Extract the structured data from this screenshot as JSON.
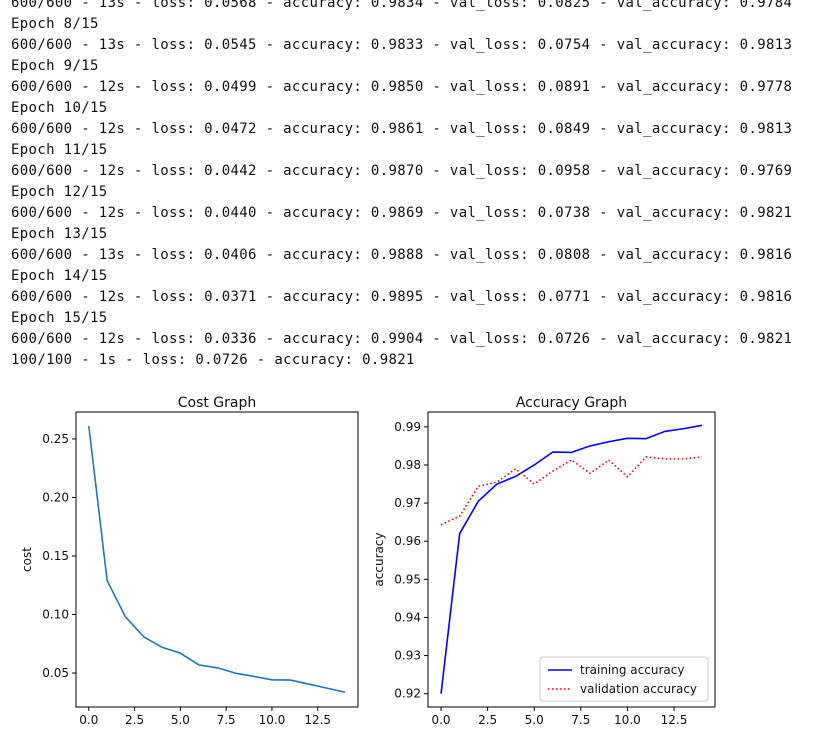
{
  "output": {
    "lines": [
      "600/600 - 13s - loss: 0.0568 - accuracy: 0.9834 - val_loss: 0.0825 - val_accuracy: 0.9784",
      "Epoch 8/15",
      "600/600 - 13s - loss: 0.0545 - accuracy: 0.9833 - val_loss: 0.0754 - val_accuracy: 0.9813",
      "Epoch 9/15",
      "600/600 - 12s - loss: 0.0499 - accuracy: 0.9850 - val_loss: 0.0891 - val_accuracy: 0.9778",
      "Epoch 10/15",
      "600/600 - 12s - loss: 0.0472 - accuracy: 0.9861 - val_loss: 0.0849 - val_accuracy: 0.9813",
      "Epoch 11/15",
      "600/600 - 12s - loss: 0.0442 - accuracy: 0.9870 - val_loss: 0.0958 - val_accuracy: 0.9769",
      "Epoch 12/15",
      "600/600 - 12s - loss: 0.0440 - accuracy: 0.9869 - val_loss: 0.0738 - val_accuracy: 0.9821",
      "Epoch 13/15",
      "600/600 - 13s - loss: 0.0406 - accuracy: 0.9888 - val_loss: 0.0808 - val_accuracy: 0.9816",
      "Epoch 14/15",
      "600/600 - 12s - loss: 0.0371 - accuracy: 0.9895 - val_loss: 0.0771 - val_accuracy: 0.9816",
      "Epoch 15/15",
      "600/600 - 12s - loss: 0.0336 - accuracy: 0.9904 - val_loss: 0.0726 - val_accuracy: 0.9821",
      "100/100 - 1s - loss: 0.0726 - accuracy: 0.9821"
    ]
  },
  "chart_data": [
    {
      "type": "line",
      "title": "Cost Graph",
      "xlabel": "",
      "ylabel": "cost",
      "xlim": [
        -0.7,
        14.7
      ],
      "ylim": [
        0.021,
        0.273
      ],
      "xticks": [
        0.0,
        2.5,
        5.0,
        7.5,
        10.0,
        12.5
      ],
      "xtick_labels": [
        "0.0",
        "2.5",
        "5.0",
        "7.5",
        "10.0",
        "12.5"
      ],
      "yticks": [
        0.05,
        0.1,
        0.15,
        0.2,
        0.25
      ],
      "ytick_labels": [
        "0.05",
        "0.10",
        "0.15",
        "0.20",
        "0.25"
      ],
      "grid": false,
      "series": [
        {
          "color": "#1f77b4",
          "style": "solid",
          "x": [
            0,
            1,
            2,
            3,
            4,
            5,
            6,
            7,
            8,
            9,
            10,
            11,
            12,
            13,
            14
          ],
          "y": [
            0.261,
            0.129,
            0.098,
            0.081,
            0.072,
            0.067,
            0.057,
            0.0545,
            0.0499,
            0.0472,
            0.0442,
            0.044,
            0.0406,
            0.0371,
            0.0336
          ]
        }
      ]
    },
    {
      "type": "line",
      "title": "Accuracy Graph",
      "xlabel": "",
      "ylabel": "accuracy",
      "xlim": [
        -0.7,
        14.7
      ],
      "ylim": [
        0.9165,
        0.9939
      ],
      "xticks": [
        0.0,
        2.5,
        5.0,
        7.5,
        10.0,
        12.5
      ],
      "xtick_labels": [
        "0.0",
        "2.5",
        "5.0",
        "7.5",
        "10.0",
        "12.5"
      ],
      "yticks": [
        0.92,
        0.93,
        0.94,
        0.95,
        0.96,
        0.97,
        0.98,
        0.99
      ],
      "ytick_labels": [
        "0.92",
        "0.93",
        "0.94",
        "0.95",
        "0.96",
        "0.97",
        "0.98",
        "0.99"
      ],
      "grid": false,
      "legend": "lower-right",
      "series": [
        {
          "name": "training accuracy",
          "color": "#0000ff",
          "style": "solid",
          "x": [
            0,
            1,
            2,
            3,
            4,
            5,
            6,
            7,
            8,
            9,
            10,
            11,
            12,
            13,
            14
          ],
          "y": [
            0.92,
            0.962,
            0.9705,
            0.975,
            0.977,
            0.98,
            0.9834,
            0.9833,
            0.985,
            0.9861,
            0.987,
            0.9869,
            0.9888,
            0.9895,
            0.9904
          ]
        },
        {
          "name": "validation accuracy",
          "color": "#ff0000",
          "style": "dotted",
          "x": [
            0,
            1,
            2,
            3,
            4,
            5,
            6,
            7,
            8,
            9,
            10,
            11,
            12,
            13,
            14
          ],
          "y": [
            0.9643,
            0.9666,
            0.9744,
            0.9755,
            0.979,
            0.975,
            0.9784,
            0.9813,
            0.9778,
            0.9813,
            0.9769,
            0.9821,
            0.9816,
            0.9816,
            0.9821
          ]
        }
      ]
    }
  ]
}
